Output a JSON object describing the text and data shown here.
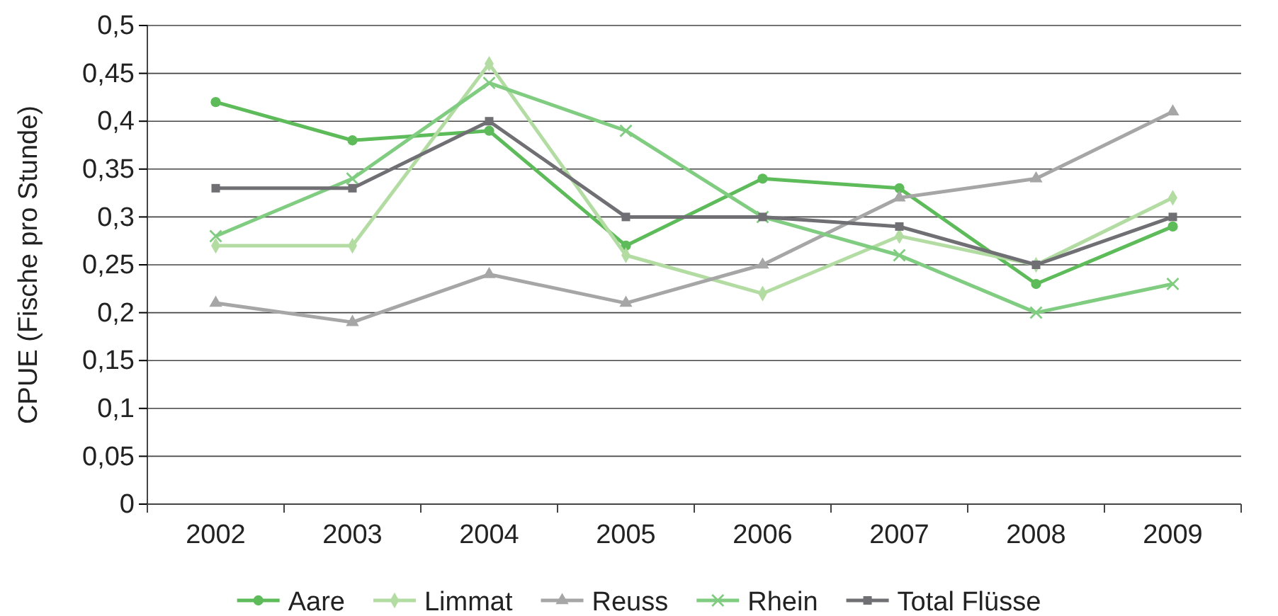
{
  "chart_data": {
    "type": "line",
    "ylabel": "CPUE (Fische pro Stunde)",
    "categories": [
      "2002",
      "2003",
      "2004",
      "2005",
      "2006",
      "2007",
      "2008",
      "2009"
    ],
    "ylim": [
      0,
      0.5
    ],
    "yticks": [
      0,
      {
        "value": 0.05,
        "label": "0,05"
      },
      {
        "value": 0.1,
        "label": "0,1"
      },
      {
        "value": 0.15,
        "label": "0,15"
      },
      {
        "value": 0.2,
        "label": "0,2"
      },
      {
        "value": 0.25,
        "label": "0,25"
      },
      {
        "value": 0.3,
        "label": "0,3"
      },
      {
        "value": 0.35,
        "label": "0,35"
      },
      {
        "value": 0.4,
        "label": "0,4"
      },
      {
        "value": 0.45,
        "label": "0,45"
      },
      {
        "value": 0.5,
        "label": "0,5"
      }
    ],
    "grid": "y",
    "legend": "bottom",
    "line_style": "solid",
    "series": [
      {
        "name": "Aare",
        "color": "#5dbb5a",
        "marker": "circle",
        "values": [
          0.42,
          0.38,
          0.39,
          0.27,
          0.34,
          0.33,
          0.23,
          0.29
        ]
      },
      {
        "name": "Limmat",
        "color": "#b3dca3",
        "marker": "diamond",
        "values": [
          0.27,
          0.27,
          0.46,
          0.26,
          0.22,
          0.28,
          0.25,
          0.32
        ]
      },
      {
        "name": "Reuss",
        "color": "#a6a6a6",
        "marker": "triangle",
        "values": [
          0.21,
          0.19,
          0.24,
          0.21,
          0.25,
          0.32,
          0.34,
          0.41
        ]
      },
      {
        "name": "Rhein",
        "color": "#80cc80",
        "marker": "cross",
        "values": [
          0.28,
          0.34,
          0.44,
          0.39,
          0.3,
          0.26,
          0.2,
          0.23
        ]
      },
      {
        "name": "Total Flüsse",
        "color": "#707074",
        "marker": "square",
        "values": [
          0.33,
          0.33,
          0.4,
          0.3,
          0.3,
          0.29,
          0.25,
          0.3
        ]
      }
    ]
  }
}
